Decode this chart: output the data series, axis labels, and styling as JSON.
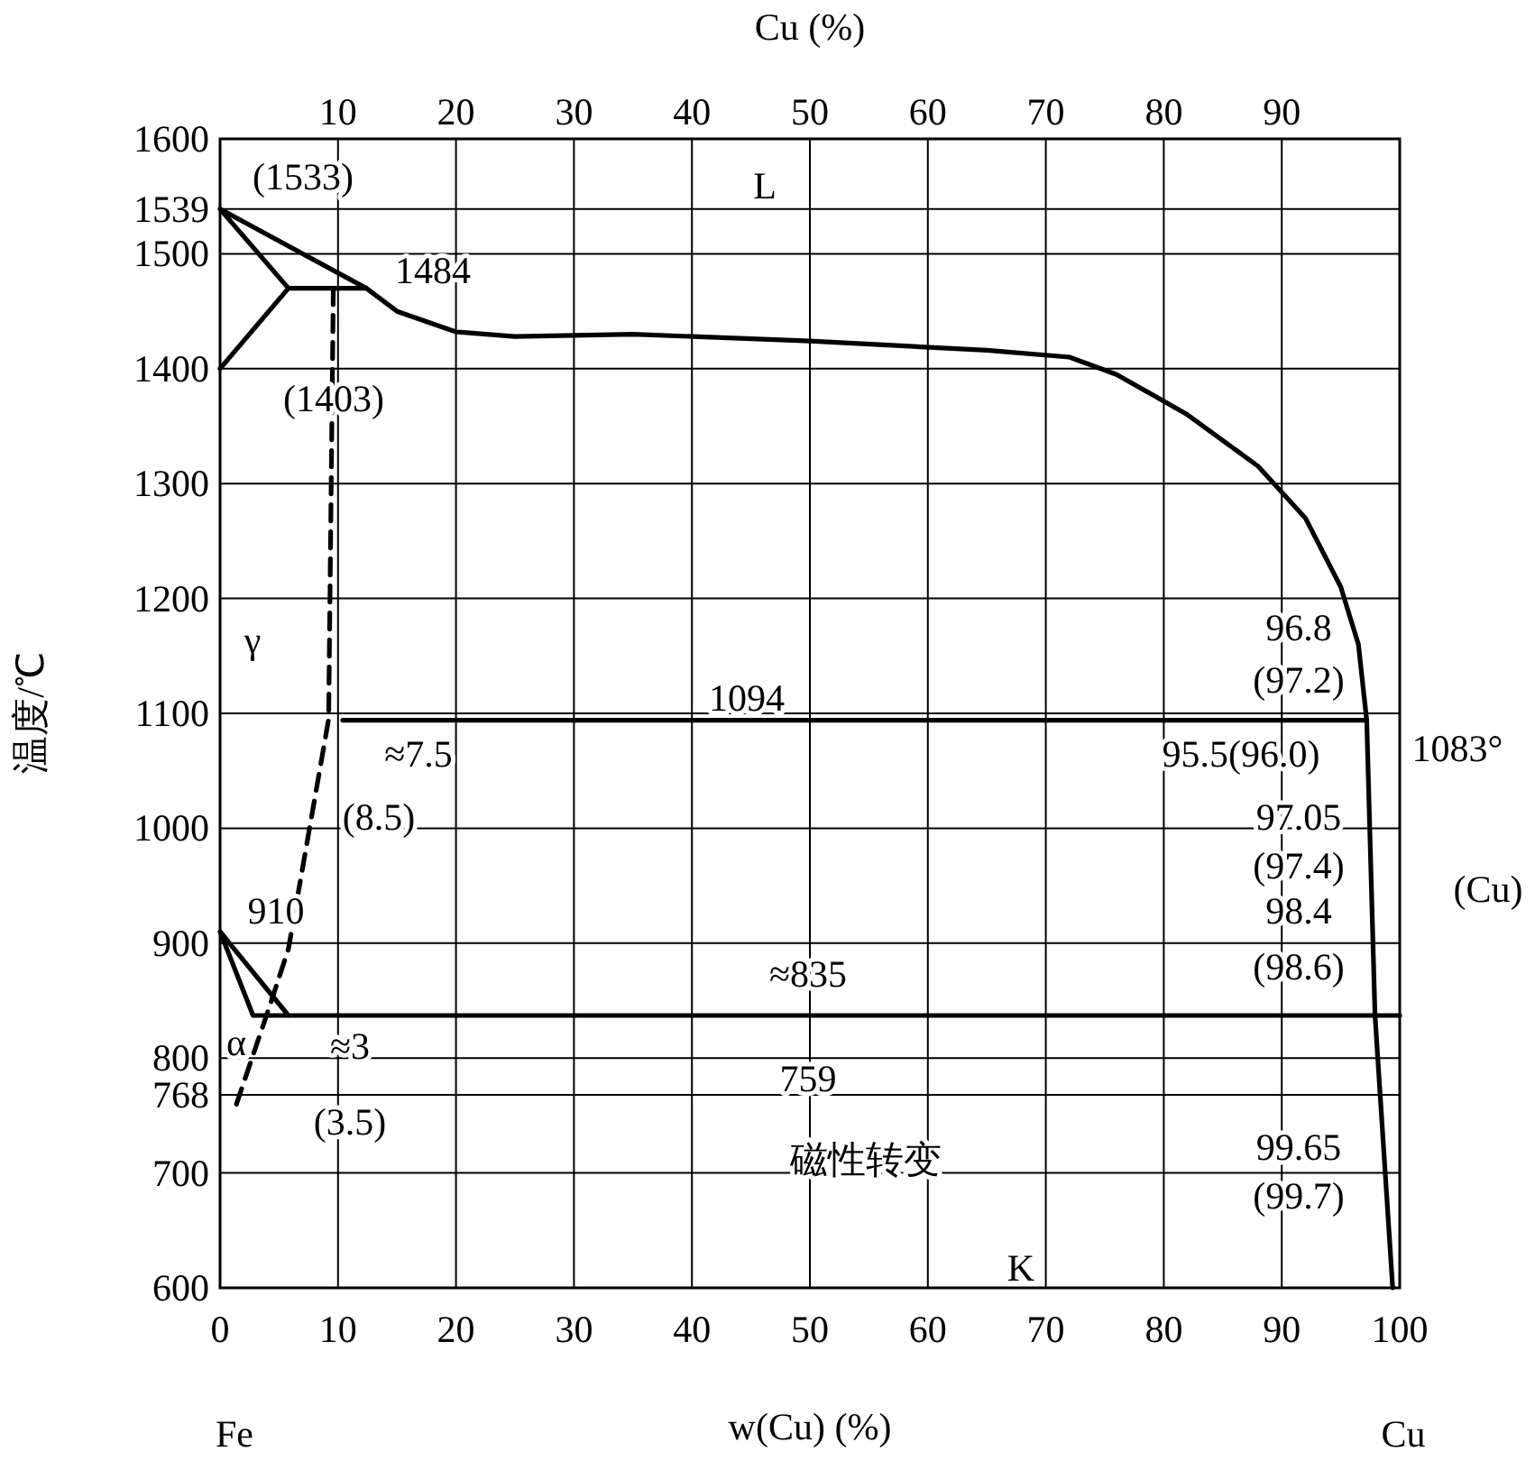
{
  "chart_data": {
    "type": "line",
    "xlabel": "w(Cu) (%)",
    "ylabel": "温度/℃",
    "x2label": "Cu  (%)",
    "xlim": [
      0,
      100
    ],
    "ylim": [
      600,
      1600
    ],
    "xticks": [
      0,
      10,
      20,
      30,
      40,
      50,
      60,
      70,
      80,
      90,
      100
    ],
    "x2lim": [
      0,
      100
    ],
    "x2ticks": [
      10,
      20,
      30,
      40,
      50,
      60,
      70,
      80,
      90
    ],
    "yticks": [
      600,
      700,
      768,
      800,
      900,
      1000,
      1100,
      1200,
      1300,
      1400,
      1500,
      1539,
      1600
    ],
    "grid": true,
    "series": [
      {
        "color": "#000000",
        "line_style": "solid",
        "x": [
          0,
          5.8,
          12.4,
          0,
          5.8
        ],
        "values": [
          1400,
          1470,
          1470,
          1539,
          1470
        ]
      },
      {
        "color": "#000000",
        "line_style": "solid",
        "x": [
          12.4,
          15,
          20,
          25,
          35,
          50,
          65,
          72,
          76,
          82,
          88,
          92,
          95,
          96.5,
          97.2,
          97.9,
          99.4
        ],
        "values": [
          1470,
          1450,
          1432,
          1428,
          1430,
          1424,
          1416,
          1410,
          1395,
          1360,
          1315,
          1270,
          1210,
          1160,
          1094,
          837,
          600
        ]
      },
      {
        "color": "#000000",
        "line_style": "dashed",
        "x": [
          9.6,
          9.2,
          5.8,
          4.3,
          1.2
        ],
        "values": [
          1470,
          1095,
          895,
          848,
          754
        ]
      },
      {
        "color": "#000000",
        "line_style": "solid",
        "x": [
          10.4,
          97.2
        ],
        "values": [
          1094,
          1094
        ]
      },
      {
        "color": "#000000",
        "line_style": "solid",
        "x": [
          5.8,
          0,
          2.8,
          100
        ],
        "values": [
          837,
          910,
          837,
          837
        ]
      }
    ],
    "annotations": [
      "L",
      "γ",
      "K",
      "磁性转变",
      "759",
      "≈835",
      "1094",
      "(1533)",
      "1484",
      "(1403)",
      "≈7.5",
      "(8.5)",
      "910",
      "≈3",
      "(3.5)",
      "α",
      "96.8",
      "(97.2)",
      "1083°",
      "95.5(96.0)",
      "97.05",
      "(97.4)",
      "(Cu)",
      "98.4",
      "(98.6)",
      "99.65",
      "(99.7)",
      "Fe",
      "Cu"
    ]
  }
}
